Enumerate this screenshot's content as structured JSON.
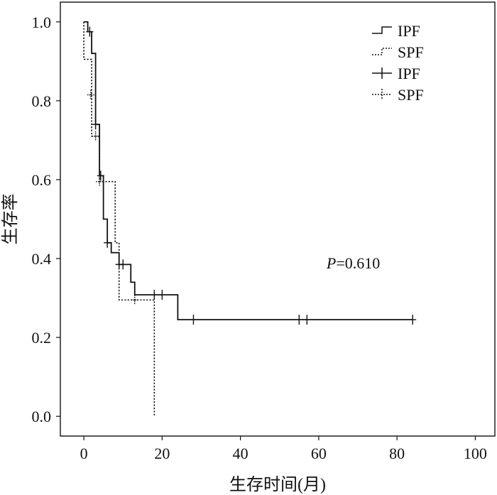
{
  "chart_data": {
    "type": "line",
    "subtype": "kaplan-meier",
    "title": "",
    "xlabel": "生存时间(月)",
    "ylabel": "生存率",
    "xlim": [
      -6,
      105
    ],
    "ylim": [
      -0.05,
      1.05
    ],
    "xticks": [
      0,
      20,
      40,
      60,
      80,
      100
    ],
    "yticks": [
      0.0,
      0.2,
      0.4,
      0.6,
      0.8,
      1.0
    ],
    "xtick_labels": [
      "0",
      "20",
      "40",
      "60",
      "80",
      "100"
    ],
    "ytick_labels": [
      "0.0",
      "0.2",
      "0.4",
      "0.6",
      "0.8",
      "1.0"
    ],
    "grid": false,
    "legend_position": "top-right",
    "legend": [
      {
        "label": "IPF",
        "kind": "survival-function",
        "style": "solid"
      },
      {
        "label": "SPF",
        "kind": "survival-function",
        "style": "dotted"
      },
      {
        "label": "IPF",
        "kind": "censored",
        "style": "solid"
      },
      {
        "label": "SPF",
        "kind": "censored",
        "style": "dotted"
      }
    ],
    "annotation": {
      "italic": "P",
      "text": "=0.610",
      "x": 62,
      "y": 0.375
    },
    "series": [
      {
        "name": "IPF",
        "style": "solid",
        "steps": [
          [
            0,
            1.0
          ],
          [
            1,
            0.975
          ],
          [
            2,
            0.92
          ],
          [
            3,
            0.74
          ],
          [
            4,
            0.61
          ],
          [
            5,
            0.5
          ],
          [
            6,
            0.44
          ],
          [
            7,
            0.415
          ],
          [
            8,
            0.415
          ],
          [
            9,
            0.385
          ],
          [
            11,
            0.385
          ],
          [
            12,
            0.34
          ],
          [
            13,
            0.308
          ],
          [
            24,
            0.308
          ],
          [
            24,
            0.245
          ],
          [
            84,
            0.245
          ]
        ],
        "censored": [
          [
            1.5,
            0.975
          ],
          [
            3,
            0.74
          ],
          [
            4.3,
            0.61
          ],
          [
            6,
            0.44
          ],
          [
            9,
            0.385
          ],
          [
            10,
            0.385
          ],
          [
            18,
            0.308
          ],
          [
            20,
            0.308
          ],
          [
            28,
            0.245
          ],
          [
            55,
            0.245
          ],
          [
            57,
            0.245
          ],
          [
            84,
            0.245
          ]
        ]
      },
      {
        "name": "SPF",
        "style": "dotted",
        "steps": [
          [
            0,
            1.0
          ],
          [
            0,
            0.905
          ],
          [
            2,
            0.905
          ],
          [
            2,
            0.71
          ],
          [
            4,
            0.71
          ],
          [
            4,
            0.595
          ],
          [
            8,
            0.595
          ],
          [
            8,
            0.44
          ],
          [
            9,
            0.44
          ],
          [
            9,
            0.295
          ],
          [
            18,
            0.295
          ],
          [
            18,
            0.0
          ]
        ],
        "censored": [
          [
            1.8,
            0.815
          ],
          [
            3,
            0.71
          ],
          [
            4,
            0.595
          ],
          [
            13,
            0.295
          ]
        ]
      }
    ]
  }
}
